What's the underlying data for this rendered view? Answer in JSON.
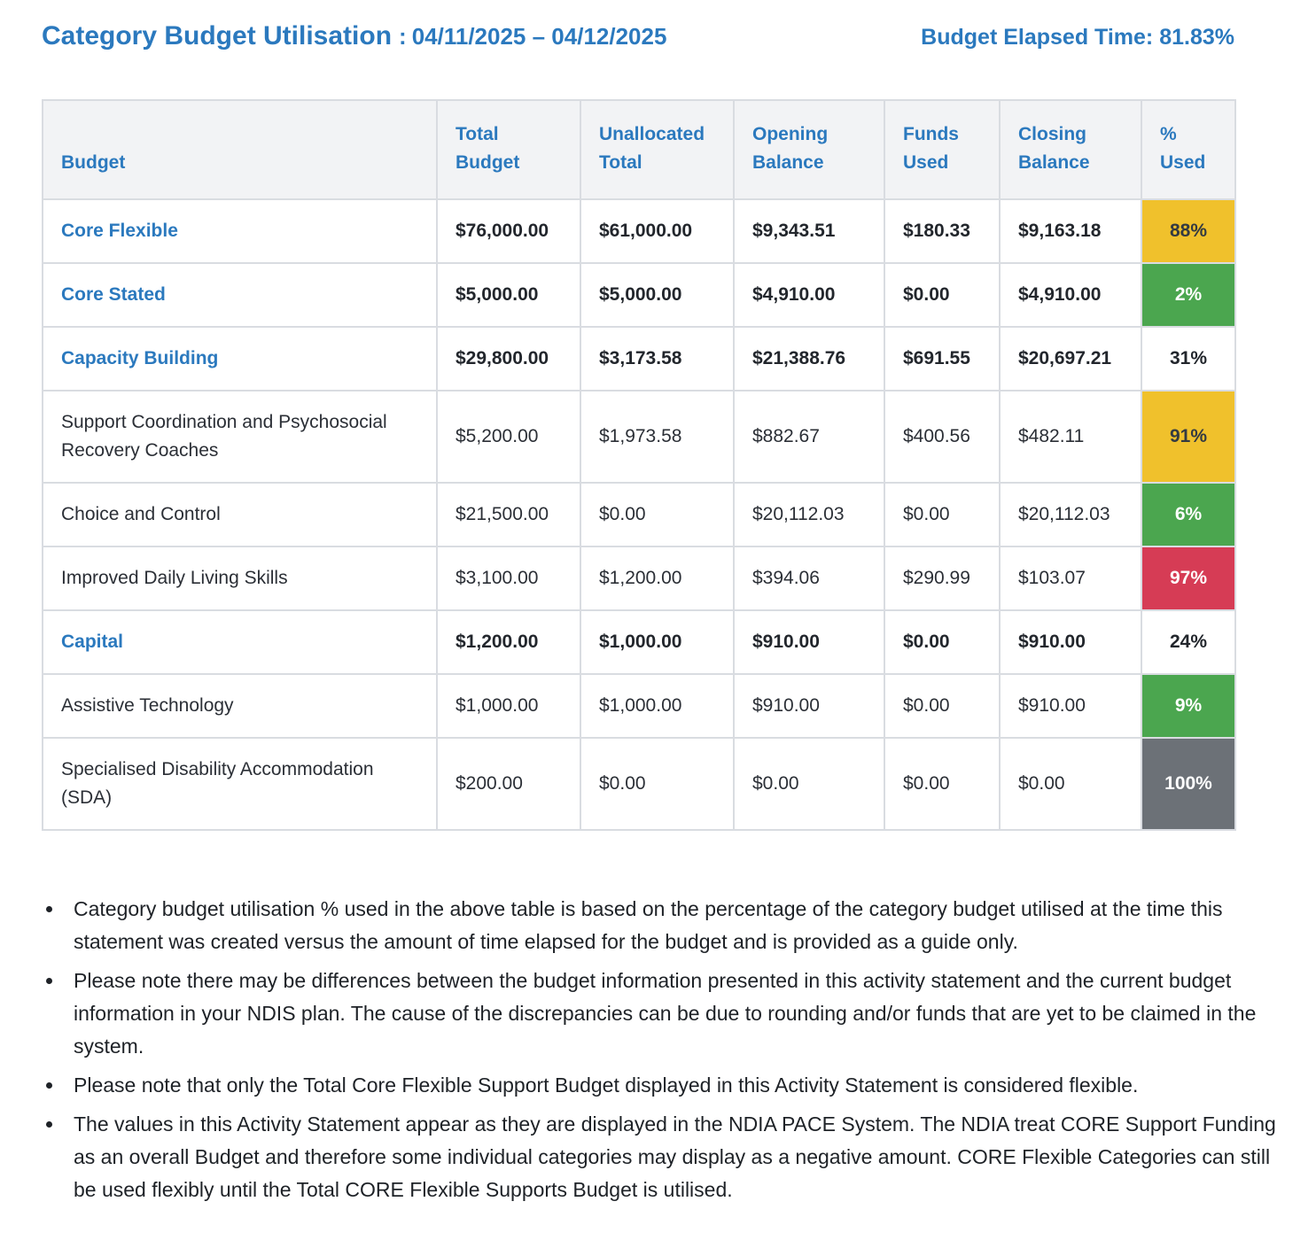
{
  "page": {
    "title": "Category Budget Utilisation",
    "title_separator": ":",
    "date_range": "04/11/2025 – 04/12/2025",
    "elapsed": "Budget Elapsed Time: 81.83%"
  },
  "table": {
    "columns": [
      "Budget",
      "Total\nBudget",
      "Unallocated\nTotal",
      "Opening\nBalance",
      "Funds\nUsed",
      "Closing\nBalance",
      "%\nUsed"
    ],
    "rows": [
      {
        "category": "Core Flexible",
        "style": "category",
        "total_budget": "$76,000.00",
        "unallocated_total": "$61,000.00",
        "opening_balance": "$9,343.51",
        "funds_used": "$180.33",
        "closing_balance": "$9,163.18",
        "pct_used": "88%",
        "pct_color": "amber"
      },
      {
        "category": "Core Stated",
        "style": "category",
        "total_budget": "$5,000.00",
        "unallocated_total": "$5,000.00",
        "opening_balance": "$4,910.00",
        "funds_used": "$0.00",
        "closing_balance": "$4,910.00",
        "pct_used": "2%",
        "pct_color": "green"
      },
      {
        "category": "Capacity Building",
        "style": "category",
        "total_budget": "$29,800.00",
        "unallocated_total": "$3,173.58",
        "opening_balance": "$21,388.76",
        "funds_used": "$691.55",
        "closing_balance": "$20,697.21",
        "pct_used": "31%",
        "pct_color": "none"
      },
      {
        "category": "Support Coordination and Psychosocial Recovery Coaches",
        "style": "item",
        "total_budget": "$5,200.00",
        "unallocated_total": "$1,973.58",
        "opening_balance": "$882.67",
        "funds_used": "$400.56",
        "closing_balance": "$482.11",
        "pct_used": "91%",
        "pct_color": "amber"
      },
      {
        "category": "Choice and Control",
        "style": "item",
        "total_budget": "$21,500.00",
        "unallocated_total": "$0.00",
        "opening_balance": "$20,112.03",
        "funds_used": "$0.00",
        "closing_balance": "$20,112.03",
        "pct_used": "6%",
        "pct_color": "green"
      },
      {
        "category": "Improved Daily Living Skills",
        "style": "item",
        "total_budget": "$3,100.00",
        "unallocated_total": "$1,200.00",
        "opening_balance": "$394.06",
        "funds_used": "$290.99",
        "closing_balance": "$103.07",
        "pct_used": "97%",
        "pct_color": "red"
      },
      {
        "category": "Capital",
        "style": "category",
        "total_budget": "$1,200.00",
        "unallocated_total": "$1,000.00",
        "opening_balance": "$910.00",
        "funds_used": "$0.00",
        "closing_balance": "$910.00",
        "pct_used": "24%",
        "pct_color": "none"
      },
      {
        "category": "Assistive Technology",
        "style": "item",
        "total_budget": "$1,000.00",
        "unallocated_total": "$1,000.00",
        "opening_balance": "$910.00",
        "funds_used": "$0.00",
        "closing_balance": "$910.00",
        "pct_used": "9%",
        "pct_color": "green"
      },
      {
        "category": "Specialised Disability Accommodation (SDA)",
        "style": "item",
        "total_budget": "$200.00",
        "unallocated_total": "$0.00",
        "opening_balance": "$0.00",
        "funds_used": "$0.00",
        "closing_balance": "$0.00",
        "pct_used": "100%",
        "pct_color": "gray"
      }
    ]
  },
  "notes": [
    "Category budget utilisation % used in the above table is based on the percentage of the category budget utilised at the time this statement was created versus the amount of time elapsed for the budget and is provided as a guide only.",
    "Please note there may be differences between the budget information presented in this activity statement and the current budget information in your NDIS plan. The cause of the discrepancies can be due to rounding and/or funds that are yet to be claimed in the system.",
    "Please note that only the Total Core Flexible Support Budget displayed in this Activity Statement is considered flexible.",
    "The values in this Activity Statement appear as they are displayed in the NDIA PACE System. The NDIA treat CORE Support Funding as an overall Budget and therefore some individual categories may display as a negative amount. CORE Flexible Categories can still be used flexibly until the Total CORE Flexible Supports Budget is utilised."
  ],
  "colors": {
    "accent_blue": "#2b79be",
    "amber": "#f0c12c",
    "green": "#4ba64f",
    "red": "#d63c55",
    "gray": "#6c7177"
  }
}
